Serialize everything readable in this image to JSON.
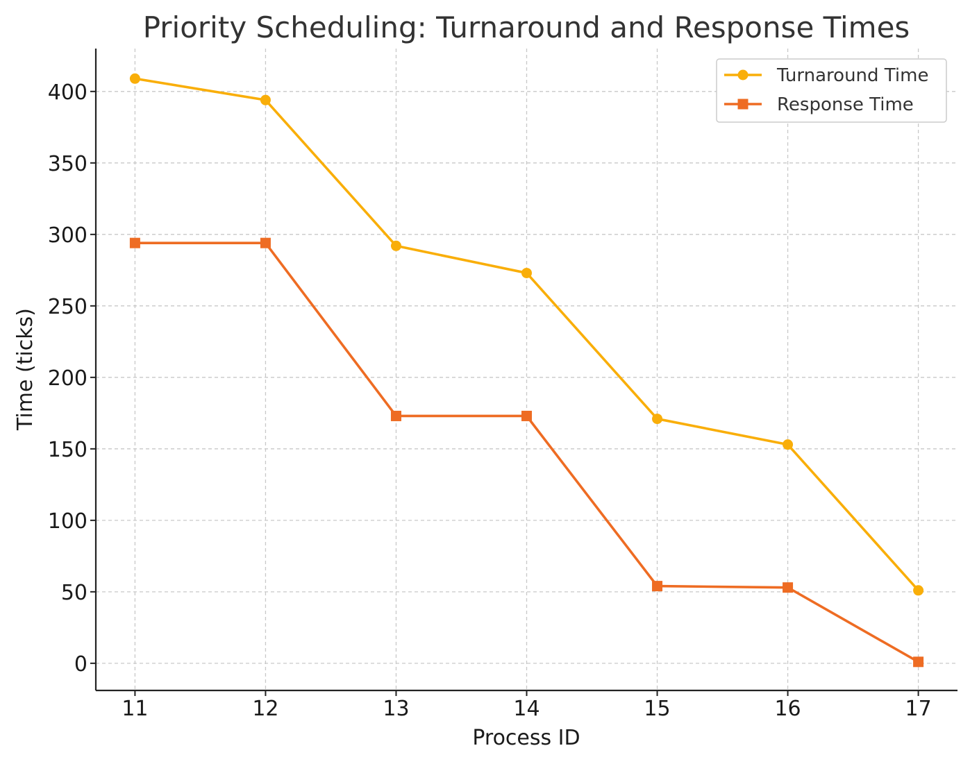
{
  "chart_data": {
    "type": "line",
    "title": "Priority Scheduling: Turnaround and Response Times",
    "xlabel": "Process ID",
    "ylabel": "Time (ticks)",
    "x": [
      11,
      12,
      13,
      14,
      15,
      16,
      17
    ],
    "xlim": [
      10.7,
      17.3
    ],
    "ylim": [
      -19,
      430
    ],
    "yticks": [
      0,
      50,
      100,
      150,
      200,
      250,
      300,
      350,
      400
    ],
    "grid": true,
    "legend_position": "top-right",
    "series": [
      {
        "name": "Turnaround Time",
        "marker": "circle",
        "color": "#F9AE09",
        "values": [
          409,
          394,
          292,
          273,
          171,
          153,
          51
        ]
      },
      {
        "name": "Response Time",
        "marker": "square",
        "color": "#EE6C23",
        "values": [
          294,
          294,
          173,
          173,
          54,
          53,
          1
        ]
      }
    ]
  }
}
